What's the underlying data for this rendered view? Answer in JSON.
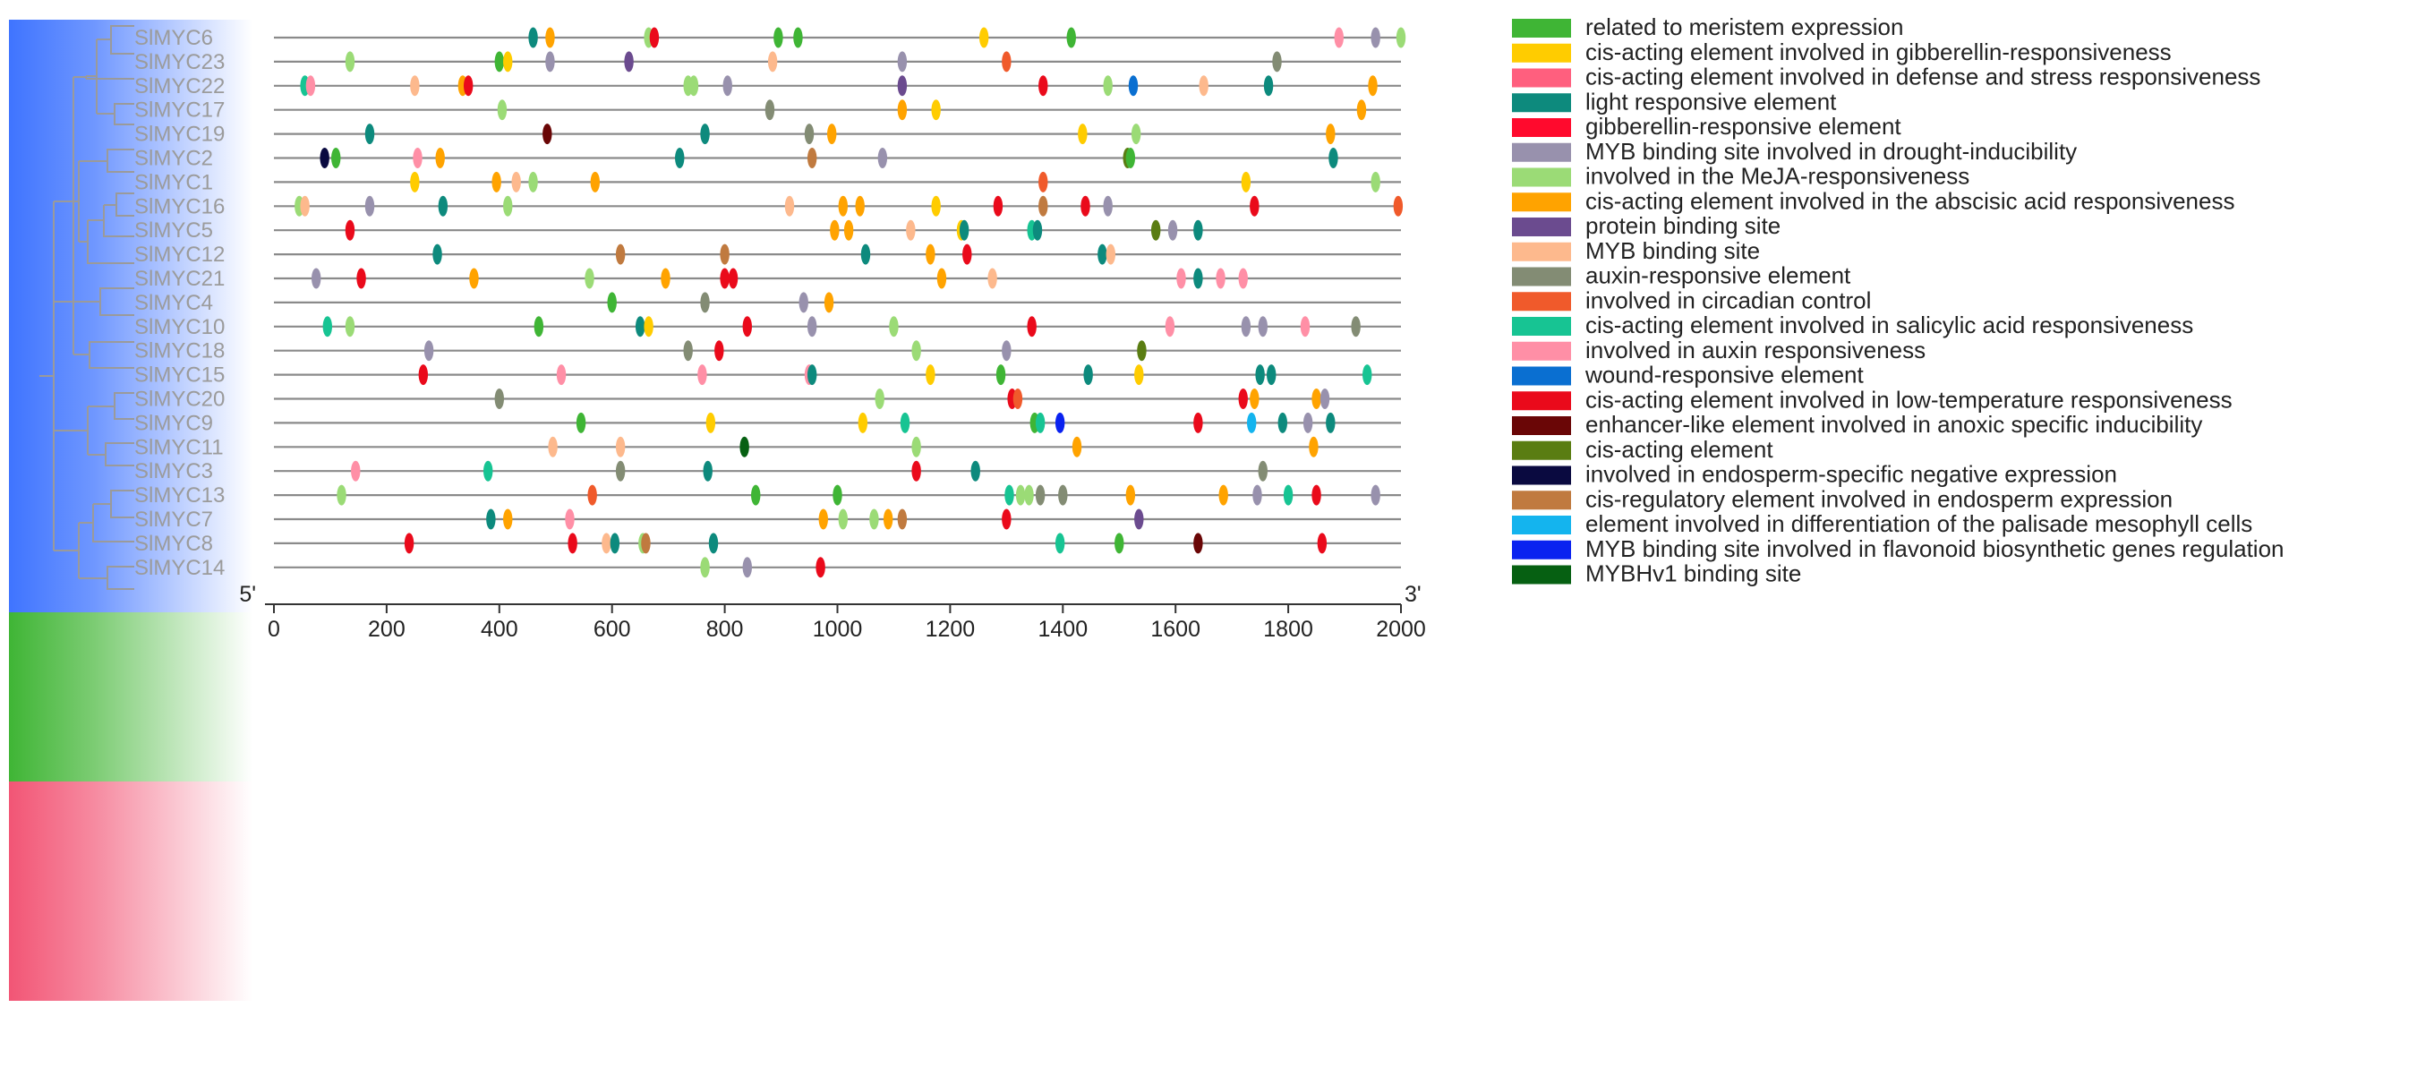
{
  "chart_data": {
    "type": "promoter-element-map",
    "x_range": [
      0,
      2000
    ],
    "x_ticks": [
      "0",
      "200",
      "400",
      "600",
      "800",
      "1000",
      "1200",
      "1400",
      "1600",
      "1800",
      "2000"
    ],
    "end_labels": {
      "left": "5'",
      "right": "3'"
    },
    "clades": [
      {
        "color_name": "blue",
        "color": "#3f74ff",
        "genes": 14
      },
      {
        "color_name": "green",
        "color": "#3fb535",
        "genes": 4
      },
      {
        "color_name": "red",
        "color": "#f25575",
        "genes": 5
      }
    ],
    "legend": [
      {
        "id": "meristem",
        "label": "related to meristem expression",
        "color": "#3fb535"
      },
      {
        "id": "ga_cis",
        "label": "cis-acting element involved in gibberellin-responsiveness",
        "color": "#ffcc00"
      },
      {
        "id": "defense",
        "label": "cis-acting element involved in defense and stress responsiveness",
        "color": "#ff5f7e"
      },
      {
        "id": "light",
        "label": "light responsive element",
        "color": "#0d8a7d"
      },
      {
        "id": "ga_resp",
        "label": "gibberellin-responsive element",
        "color": "#ff0a2d"
      },
      {
        "id": "myb_drought",
        "label": "MYB binding site involved in drought-inducibility",
        "color": "#9891ad"
      },
      {
        "id": "meja",
        "label": "involved in the MeJA-responsiveness",
        "color": "#9bdb76"
      },
      {
        "id": "aba",
        "label": "cis-acting element involved in the abscisic acid responsiveness",
        "color": "#ffa300"
      },
      {
        "id": "protein",
        "label": "protein binding site",
        "color": "#6b4b8f"
      },
      {
        "id": "myb",
        "label": "MYB binding site",
        "color": "#fdb98d"
      },
      {
        "id": "auxin_el",
        "label": "auxin-responsive element",
        "color": "#838c74"
      },
      {
        "id": "circadian",
        "label": "involved in circadian control",
        "color": "#f05a2b"
      },
      {
        "id": "sa",
        "label": "cis-acting element involved in salicylic acid responsiveness",
        "color": "#17c493"
      },
      {
        "id": "auxin_resp",
        "label": "involved in auxin responsiveness",
        "color": "#ff8fa6"
      },
      {
        "id": "wound",
        "label": "wound-responsive element",
        "color": "#0a6fd1"
      },
      {
        "id": "lowtemp",
        "label": "cis-acting element involved in low-temperature responsiveness",
        "color": "#ea0a1b"
      },
      {
        "id": "anoxic",
        "label": "enhancer-like element involved in anoxic specific inducibility",
        "color": "#6a0606"
      },
      {
        "id": "cis",
        "label": "cis-acting element",
        "color": "#5a7d12"
      },
      {
        "id": "endosperm_neg",
        "label": "involved in endosperm-specific negative expression",
        "color": "#0a0a40"
      },
      {
        "id": "endosperm",
        "label": "cis-regulatory element involved in endosperm expression",
        "color": "#c07a3f"
      },
      {
        "id": "palisade",
        "label": "element involved in differentiation of the palisade mesophyll cells",
        "color": "#14b4ee"
      },
      {
        "id": "flavonoid",
        "label": "MYB binding site involved in flavonoid biosynthetic genes regulation",
        "color": "#0a22f0"
      },
      {
        "id": "mybhv1",
        "label": "MYBHv1 binding site",
        "color": "#066012"
      }
    ],
    "genes": [
      {
        "name": "SlMYC6",
        "elements": [
          [
            460,
            "light"
          ],
          [
            490,
            "aba"
          ],
          [
            665,
            "meja"
          ],
          [
            675,
            "lowtemp"
          ],
          [
            895,
            "meristem"
          ],
          [
            930,
            "meristem"
          ],
          [
            1260,
            "ga_cis"
          ],
          [
            1415,
            "meristem"
          ],
          [
            1890,
            "auxin_resp"
          ],
          [
            1955,
            "myb_drought"
          ],
          [
            2000,
            "meja"
          ]
        ]
      },
      {
        "name": "SlMYC23",
        "elements": [
          [
            135,
            "meja"
          ],
          [
            400,
            "meristem"
          ],
          [
            415,
            "ga_cis"
          ],
          [
            490,
            "myb_drought"
          ],
          [
            630,
            "protein"
          ],
          [
            885,
            "myb"
          ],
          [
            1115,
            "myb_drought"
          ],
          [
            1300,
            "circadian"
          ],
          [
            1780,
            "auxin_el"
          ]
        ]
      },
      {
        "name": "SlMYC22",
        "elements": [
          [
            55,
            "sa"
          ],
          [
            65,
            "auxin_resp"
          ],
          [
            250,
            "myb"
          ],
          [
            335,
            "aba"
          ],
          [
            345,
            "lowtemp"
          ],
          [
            735,
            "meja"
          ],
          [
            745,
            "meja"
          ],
          [
            805,
            "myb_drought"
          ],
          [
            1115,
            "protein"
          ],
          [
            1365,
            "lowtemp"
          ],
          [
            1480,
            "meja"
          ],
          [
            1525,
            "wound"
          ],
          [
            1650,
            "myb"
          ],
          [
            1765,
            "light"
          ],
          [
            1950,
            "aba"
          ]
        ]
      },
      {
        "name": "SlMYC17",
        "elements": [
          [
            405,
            "meja"
          ],
          [
            880,
            "auxin_el"
          ],
          [
            1115,
            "aba"
          ],
          [
            1175,
            "ga_cis"
          ],
          [
            1930,
            "aba"
          ]
        ]
      },
      {
        "name": "SlMYC19",
        "elements": [
          [
            170,
            "light"
          ],
          [
            485,
            "anoxic"
          ],
          [
            765,
            "light"
          ],
          [
            950,
            "auxin_el"
          ],
          [
            990,
            "aba"
          ],
          [
            1435,
            "ga_cis"
          ],
          [
            1530,
            "meja"
          ],
          [
            1875,
            "aba"
          ]
        ]
      },
      {
        "name": "SlMYC2",
        "elements": [
          [
            90,
            "endosperm_neg"
          ],
          [
            110,
            "meristem"
          ],
          [
            255,
            "auxin_resp"
          ],
          [
            295,
            "aba"
          ],
          [
            720,
            "light"
          ],
          [
            955,
            "endosperm"
          ],
          [
            1080,
            "myb_drought"
          ],
          [
            1515,
            "cis"
          ],
          [
            1520,
            "meristem"
          ],
          [
            1880,
            "light"
          ]
        ]
      },
      {
        "name": "SlMYC1",
        "elements": [
          [
            250,
            "ga_cis"
          ],
          [
            395,
            "aba"
          ],
          [
            430,
            "myb"
          ],
          [
            460,
            "meja"
          ],
          [
            570,
            "aba"
          ],
          [
            1365,
            "circadian"
          ],
          [
            1725,
            "ga_cis"
          ],
          [
            1955,
            "meja"
          ]
        ]
      },
      {
        "name": "SlMYC16",
        "elements": [
          [
            45,
            "meja"
          ],
          [
            55,
            "myb"
          ],
          [
            170,
            "myb_drought"
          ],
          [
            300,
            "light"
          ],
          [
            415,
            "meja"
          ],
          [
            915,
            "myb"
          ],
          [
            1010,
            "aba"
          ],
          [
            1040,
            "aba"
          ],
          [
            1175,
            "ga_cis"
          ],
          [
            1285,
            "lowtemp"
          ],
          [
            1365,
            "endosperm"
          ],
          [
            1440,
            "lowtemp"
          ],
          [
            1480,
            "myb_drought"
          ],
          [
            1740,
            "lowtemp"
          ],
          [
            1995,
            "circadian"
          ]
        ]
      },
      {
        "name": "SlMYC5",
        "elements": [
          [
            135,
            "lowtemp"
          ],
          [
            995,
            "aba"
          ],
          [
            1020,
            "aba"
          ],
          [
            1130,
            "myb"
          ],
          [
            1220,
            "ga_cis"
          ],
          [
            1225,
            "light"
          ],
          [
            1345,
            "sa"
          ],
          [
            1355,
            "light"
          ],
          [
            1565,
            "cis"
          ],
          [
            1595,
            "myb_drought"
          ],
          [
            1640,
            "light"
          ]
        ]
      },
      {
        "name": "SlMYC12",
        "elements": [
          [
            290,
            "light"
          ],
          [
            615,
            "endosperm"
          ],
          [
            800,
            "endosperm"
          ],
          [
            1050,
            "light"
          ],
          [
            1165,
            "aba"
          ],
          [
            1230,
            "lowtemp"
          ],
          [
            1470,
            "light"
          ],
          [
            1485,
            "myb"
          ]
        ]
      },
      {
        "name": "SlMYC21",
        "elements": [
          [
            75,
            "myb_drought"
          ],
          [
            155,
            "lowtemp"
          ],
          [
            355,
            "aba"
          ],
          [
            560,
            "meja"
          ],
          [
            695,
            "aba"
          ],
          [
            800,
            "lowtemp"
          ],
          [
            815,
            "lowtemp"
          ],
          [
            1185,
            "aba"
          ],
          [
            1275,
            "myb"
          ],
          [
            1610,
            "auxin_resp"
          ],
          [
            1640,
            "light"
          ],
          [
            1680,
            "auxin_resp"
          ],
          [
            1720,
            "auxin_resp"
          ]
        ]
      },
      {
        "name": "SlMYC4",
        "elements": [
          [
            600,
            "meristem"
          ],
          [
            765,
            "auxin_el"
          ],
          [
            940,
            "myb_drought"
          ],
          [
            985,
            "aba"
          ]
        ]
      },
      {
        "name": "SlMYC10",
        "elements": [
          [
            95,
            "sa"
          ],
          [
            135,
            "meja"
          ],
          [
            470,
            "meristem"
          ],
          [
            650,
            "light"
          ],
          [
            665,
            "ga_cis"
          ],
          [
            840,
            "lowtemp"
          ],
          [
            955,
            "myb_drought"
          ],
          [
            1100,
            "meja"
          ],
          [
            1345,
            "lowtemp"
          ],
          [
            1590,
            "auxin_resp"
          ],
          [
            1725,
            "myb_drought"
          ],
          [
            1755,
            "myb_drought"
          ],
          [
            1830,
            "auxin_resp"
          ],
          [
            1920,
            "auxin_el"
          ]
        ]
      },
      {
        "name": "SlMYC18",
        "elements": [
          [
            275,
            "myb_drought"
          ],
          [
            735,
            "auxin_el"
          ],
          [
            790,
            "lowtemp"
          ],
          [
            1140,
            "meja"
          ],
          [
            1300,
            "myb_drought"
          ],
          [
            1540,
            "cis"
          ]
        ]
      },
      {
        "name": "SlMYC15",
        "elements": [
          [
            265,
            "lowtemp"
          ],
          [
            510,
            "auxin_resp"
          ],
          [
            760,
            "auxin_resp"
          ],
          [
            950,
            "auxin_resp"
          ],
          [
            955,
            "light"
          ],
          [
            1165,
            "ga_cis"
          ],
          [
            1290,
            "meristem"
          ],
          [
            1445,
            "light"
          ],
          [
            1535,
            "ga_cis"
          ],
          [
            1750,
            "light"
          ],
          [
            1770,
            "light"
          ],
          [
            1940,
            "sa"
          ]
        ]
      },
      {
        "name": "SlMYC20",
        "elements": [
          [
            400,
            "auxin_el"
          ],
          [
            1075,
            "meja"
          ],
          [
            1310,
            "lowtemp"
          ],
          [
            1320,
            "circadian"
          ],
          [
            1720,
            "lowtemp"
          ],
          [
            1740,
            "aba"
          ],
          [
            1850,
            "aba"
          ],
          [
            1865,
            "myb_drought"
          ]
        ]
      },
      {
        "name": "SlMYC9",
        "elements": [
          [
            545,
            "meristem"
          ],
          [
            775,
            "ga_cis"
          ],
          [
            1045,
            "ga_cis"
          ],
          [
            1120,
            "sa"
          ],
          [
            1350,
            "meristem"
          ],
          [
            1360,
            "sa"
          ],
          [
            1395,
            "flavonoid"
          ],
          [
            1640,
            "lowtemp"
          ],
          [
            1735,
            "palisade"
          ],
          [
            1790,
            "light"
          ],
          [
            1835,
            "myb_drought"
          ],
          [
            1875,
            "light"
          ]
        ]
      },
      {
        "name": "SlMYC11",
        "elements": [
          [
            495,
            "myb"
          ],
          [
            615,
            "myb"
          ],
          [
            835,
            "mybhv1"
          ],
          [
            1140,
            "meja"
          ],
          [
            1425,
            "aba"
          ],
          [
            1845,
            "aba"
          ]
        ]
      },
      {
        "name": "SlMYC3",
        "elements": [
          [
            145,
            "auxin_resp"
          ],
          [
            380,
            "sa"
          ],
          [
            615,
            "auxin_el"
          ],
          [
            770,
            "light"
          ],
          [
            1140,
            "lowtemp"
          ],
          [
            1245,
            "light"
          ],
          [
            1755,
            "auxin_el"
          ]
        ]
      },
      {
        "name": "SlMYC13",
        "elements": [
          [
            120,
            "meja"
          ],
          [
            565,
            "circadian"
          ],
          [
            855,
            "meristem"
          ],
          [
            1000,
            "meristem"
          ],
          [
            1305,
            "sa"
          ],
          [
            1325,
            "meja"
          ],
          [
            1340,
            "meja"
          ],
          [
            1360,
            "auxin_el"
          ],
          [
            1400,
            "auxin_el"
          ],
          [
            1520,
            "aba"
          ],
          [
            1685,
            "aba"
          ],
          [
            1745,
            "myb_drought"
          ],
          [
            1800,
            "sa"
          ],
          [
            1850,
            "lowtemp"
          ],
          [
            1955,
            "myb_drought"
          ]
        ]
      },
      {
        "name": "SlMYC7",
        "elements": [
          [
            385,
            "light"
          ],
          [
            415,
            "aba"
          ],
          [
            525,
            "auxin_resp"
          ],
          [
            975,
            "aba"
          ],
          [
            1010,
            "meja"
          ],
          [
            1065,
            "meja"
          ],
          [
            1090,
            "aba"
          ],
          [
            1115,
            "endosperm"
          ],
          [
            1300,
            "lowtemp"
          ],
          [
            1535,
            "protein"
          ]
        ]
      },
      {
        "name": "SlMYC8",
        "elements": [
          [
            240,
            "lowtemp"
          ],
          [
            530,
            "lowtemp"
          ],
          [
            590,
            "myb"
          ],
          [
            605,
            "light"
          ],
          [
            655,
            "meja"
          ],
          [
            660,
            "endosperm"
          ],
          [
            780,
            "light"
          ],
          [
            1395,
            "sa"
          ],
          [
            1500,
            "meristem"
          ],
          [
            1640,
            "anoxic"
          ],
          [
            1860,
            "lowtemp"
          ]
        ]
      },
      {
        "name": "SlMYC14",
        "elements": [
          [
            765,
            "meja"
          ],
          [
            840,
            "myb_drought"
          ],
          [
            970,
            "lowtemp"
          ]
        ]
      }
    ]
  }
}
